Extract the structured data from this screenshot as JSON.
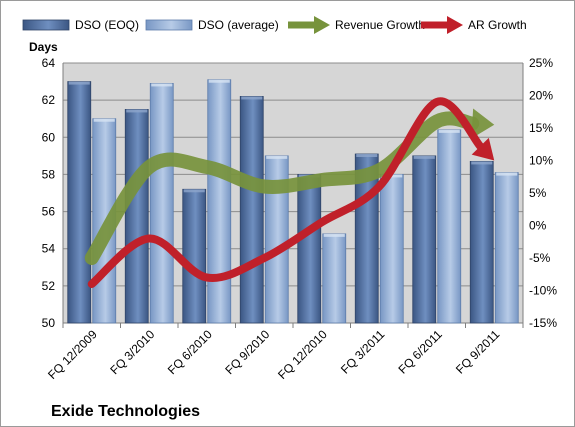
{
  "chart_data": {
    "type": "bar",
    "title": "",
    "company_label": "Exide Technologies",
    "categories": [
      "FQ 12/2009",
      "FQ 3/2010",
      "FQ 6/2010",
      "FQ 9/2010",
      "FQ 12/2010",
      "FQ 3/2011",
      "FQ 6/2011",
      "FQ 9/2011"
    ],
    "y_left": {
      "label": "Days",
      "min": 50,
      "max": 64,
      "step": 2
    },
    "y_right": {
      "label": "",
      "min": -15,
      "max": 25,
      "step": 5,
      "format": "percent"
    },
    "grid": true,
    "legend_position": "top",
    "bar_series": [
      {
        "name": "DSO (EOQ)",
        "color": "#4a6796",
        "values": [
          63.0,
          61.5,
          57.2,
          62.2,
          58.0,
          59.1,
          59.0,
          58.7
        ]
      },
      {
        "name": "DSO (average)",
        "color": "#8aa8d2",
        "values": [
          61.0,
          62.9,
          63.1,
          59.0,
          54.8,
          58.0,
          60.4,
          58.1
        ]
      }
    ],
    "line_series": [
      {
        "name": "Revenue Growth",
        "color": "#77933c",
        "axis": "right",
        "values": [
          -5.0,
          9.0,
          9.0,
          6.0,
          7.0,
          8.5,
          16.0,
          15.5
        ]
      },
      {
        "name": "AR Growth",
        "color": "#c0202a",
        "axis": "right",
        "values": [
          -9.0,
          -2.0,
          -8.0,
          -5.0,
          0.5,
          6.0,
          19.0,
          10.0
        ]
      }
    ]
  }
}
